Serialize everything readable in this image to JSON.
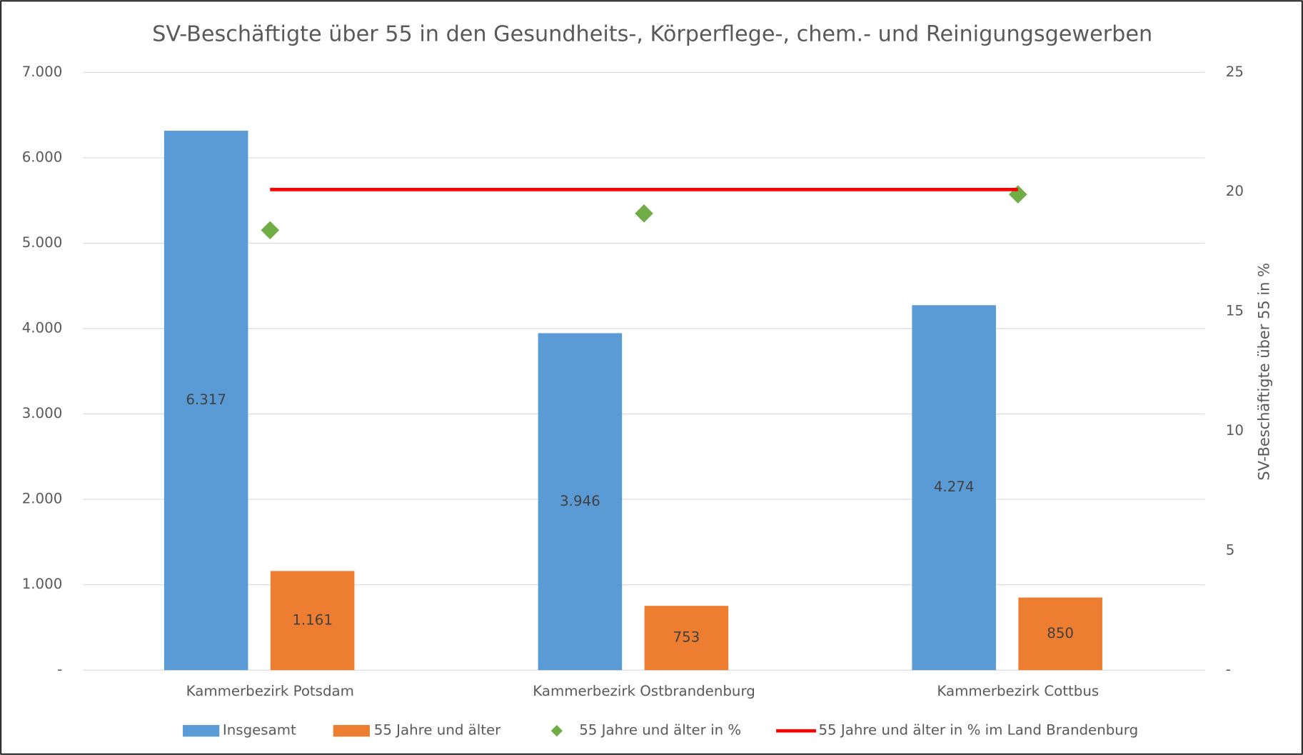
{
  "chart_data": {
    "type": "bar",
    "title": "SV-Beschäftigte über 55 in den Gesundheits-, Körperflege-, chem.- und Reinigungsgewerben",
    "y2label": "SV-Beschäftigte über 55 in %",
    "categories": [
      "Kammerbezirk Potsdam",
      "Kammerbezirk Ostbrandenburg",
      "Kammerbezirk Cottbus"
    ],
    "series": [
      {
        "name": "Insgesamt",
        "type": "bar",
        "color": "#5b9bd5",
        "values": [
          6317,
          3946,
          4274
        ],
        "value_labels": [
          "6.317",
          "3.946",
          "4.274"
        ]
      },
      {
        "name": "55 Jahre und älter",
        "type": "bar",
        "color": "#ed7d31",
        "values": [
          1161,
          753,
          850
        ],
        "value_labels": [
          "1.161",
          "753",
          "850"
        ]
      },
      {
        "name": "55 Jahre und älter in %",
        "type": "scatter",
        "axis": "y2",
        "color": "#70ad47",
        "values": [
          18.4,
          19.1,
          19.9
        ]
      },
      {
        "name": "55 Jahre und älter in % im Land Brandenburg",
        "type": "line",
        "axis": "y2",
        "color": "#ff0000",
        "values": [
          20.1,
          20.1,
          20.1
        ]
      }
    ],
    "ylim": [
      0,
      7000
    ],
    "yticks": [
      {
        "value": 0,
        "label": "-"
      },
      {
        "value": 1000,
        "label": "1.000"
      },
      {
        "value": 2000,
        "label": "2.000"
      },
      {
        "value": 3000,
        "label": "3.000"
      },
      {
        "value": 4000,
        "label": "4.000"
      },
      {
        "value": 5000,
        "label": "5.000"
      },
      {
        "value": 6000,
        "label": "6.000"
      },
      {
        "value": 7000,
        "label": "7.000"
      }
    ],
    "y2lim": [
      0,
      25
    ],
    "y2ticks": [
      {
        "value": 0,
        "label": "-"
      },
      5,
      10,
      15,
      20,
      25
    ],
    "grid": true,
    "legend": "bottom"
  }
}
